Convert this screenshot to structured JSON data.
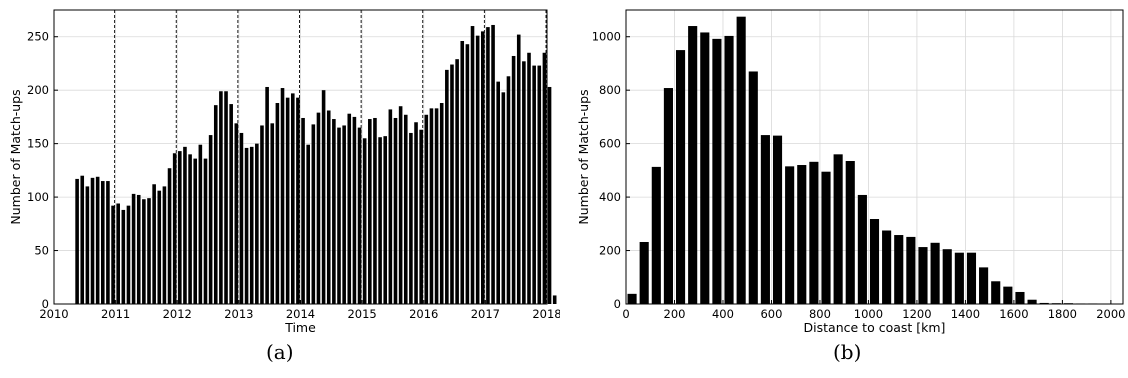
{
  "chart_data": [
    {
      "type": "bar",
      "caption": "(a)",
      "xlabel": "Time",
      "ylabel": "Number of Match-ups",
      "xlim": [
        2010,
        2018
      ],
      "ylim": [
        0,
        275
      ],
      "xticks": [
        2010,
        2011,
        2012,
        2013,
        2014,
        2015,
        2016,
        2017,
        2018
      ],
      "yticks": [
        0,
        50,
        100,
        150,
        200,
        250
      ],
      "grid": true,
      "year_markers": [
        2011,
        2012,
        2013,
        2014,
        2015,
        2016,
        2017,
        2018
      ],
      "x_start": 2010.375,
      "x_step": 0.08333,
      "values": [
        117,
        120,
        110,
        118,
        119,
        115,
        115,
        92,
        94,
        88,
        92,
        103,
        102,
        98,
        99,
        112,
        106,
        110,
        127,
        141,
        143,
        147,
        140,
        136,
        149,
        136,
        158,
        186,
        199,
        199,
        187,
        169,
        160,
        146,
        147,
        150,
        167,
        203,
        169,
        188,
        202,
        193,
        197,
        193,
        174,
        149,
        168,
        179,
        200,
        181,
        173,
        165,
        167,
        178,
        175,
        165,
        155,
        173,
        174,
        156,
        157,
        182,
        174,
        185,
        177,
        160,
        170,
        163,
        177,
        183,
        183,
        188,
        219,
        224,
        229,
        246,
        243,
        260,
        251,
        255,
        259,
        261,
        208,
        198,
        213,
        232,
        252,
        227,
        235,
        223,
        223,
        235,
        203,
        8
      ]
    },
    {
      "type": "bar",
      "caption": "(b)",
      "xlabel": "Distance to coast [km]",
      "ylabel": "Number of Match-ups",
      "xlim": [
        0,
        2050
      ],
      "ylim": [
        0,
        1100
      ],
      "xticks": [
        0,
        200,
        400,
        600,
        800,
        1000,
        1200,
        1400,
        1600,
        1800,
        2000
      ],
      "yticks": [
        0,
        200,
        400,
        600,
        800,
        1000
      ],
      "grid": true,
      "bin_width": 50,
      "bin_start": 0,
      "values": [
        38,
        232,
        513,
        808,
        950,
        1040,
        1016,
        992,
        1003,
        1075,
        870,
        632,
        630,
        515,
        520,
        532,
        495,
        560,
        535,
        408,
        318,
        275,
        258,
        251,
        213,
        229,
        205,
        192,
        192,
        137,
        85,
        65,
        45,
        16,
        4,
        3,
        3,
        2,
        2,
        0
      ]
    }
  ]
}
